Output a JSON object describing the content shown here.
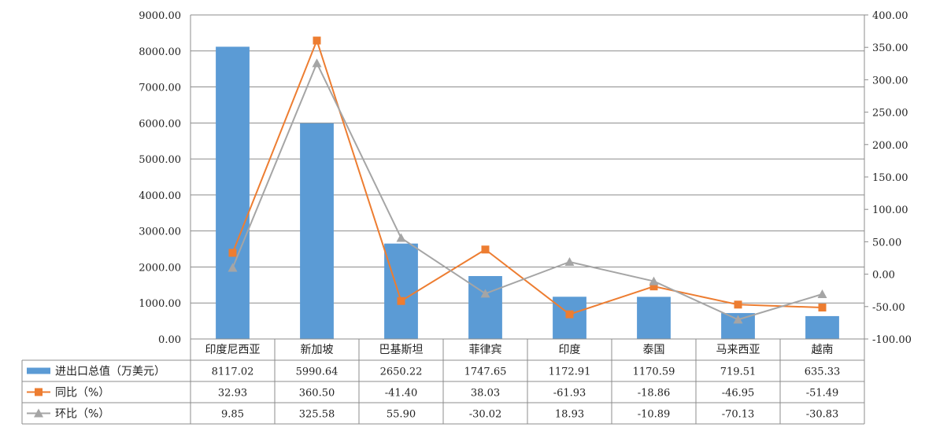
{
  "chart_data": {
    "type": "bar",
    "categories": [
      "印度尼西亚",
      "新加坡",
      "巴基斯坦",
      "菲律宾",
      "印度",
      "泰国",
      "马来西亚",
      "越南"
    ],
    "series": [
      {
        "name": "进出口总值（万美元）",
        "type": "bar",
        "axis": "left",
        "color": "#5B9BD5",
        "values": [
          8117.02,
          5990.64,
          2650.22,
          1747.65,
          1172.91,
          1170.59,
          719.51,
          635.33
        ],
        "labels": [
          "8117.02",
          "5990.64",
          "2650.22",
          "1747.65",
          "1172.91",
          "1170.59",
          "719.51",
          "635.33"
        ]
      },
      {
        "name": "同比（%）",
        "type": "line",
        "marker": "square",
        "axis": "right",
        "color": "#ED7D31",
        "values": [
          32.93,
          360.5,
          -41.4,
          38.03,
          -61.93,
          -18.86,
          -46.95,
          -51.49
        ],
        "labels": [
          "32.93",
          "360.50",
          "-41.40",
          "38.03",
          "-61.93",
          "-18.86",
          "-46.95",
          "-51.49"
        ]
      },
      {
        "name": "环比（%）",
        "type": "line",
        "marker": "triangle",
        "axis": "right",
        "color": "#A5A5A5",
        "values": [
          9.85,
          325.58,
          55.9,
          -30.02,
          18.93,
          -10.89,
          -70.13,
          -30.83
        ],
        "labels": [
          "9.85",
          "325.58",
          "55.90",
          "-30.02",
          "18.93",
          "-10.89",
          "-70.13",
          "-30.83"
        ]
      }
    ],
    "y_left": {
      "min": 0,
      "max": 9000,
      "ticks": [
        "0.00",
        "1000.00",
        "2000.00",
        "3000.00",
        "4000.00",
        "5000.00",
        "6000.00",
        "7000.00",
        "8000.00",
        "9000.00"
      ]
    },
    "y_right": {
      "min": -100,
      "max": 400,
      "ticks": [
        "-100.00",
        "-50.00",
        "0.00",
        "50.00",
        "100.00",
        "150.00",
        "200.00",
        "250.00",
        "300.00",
        "350.00",
        "400.00"
      ]
    },
    "grid": true,
    "legend": "data-table-below"
  }
}
